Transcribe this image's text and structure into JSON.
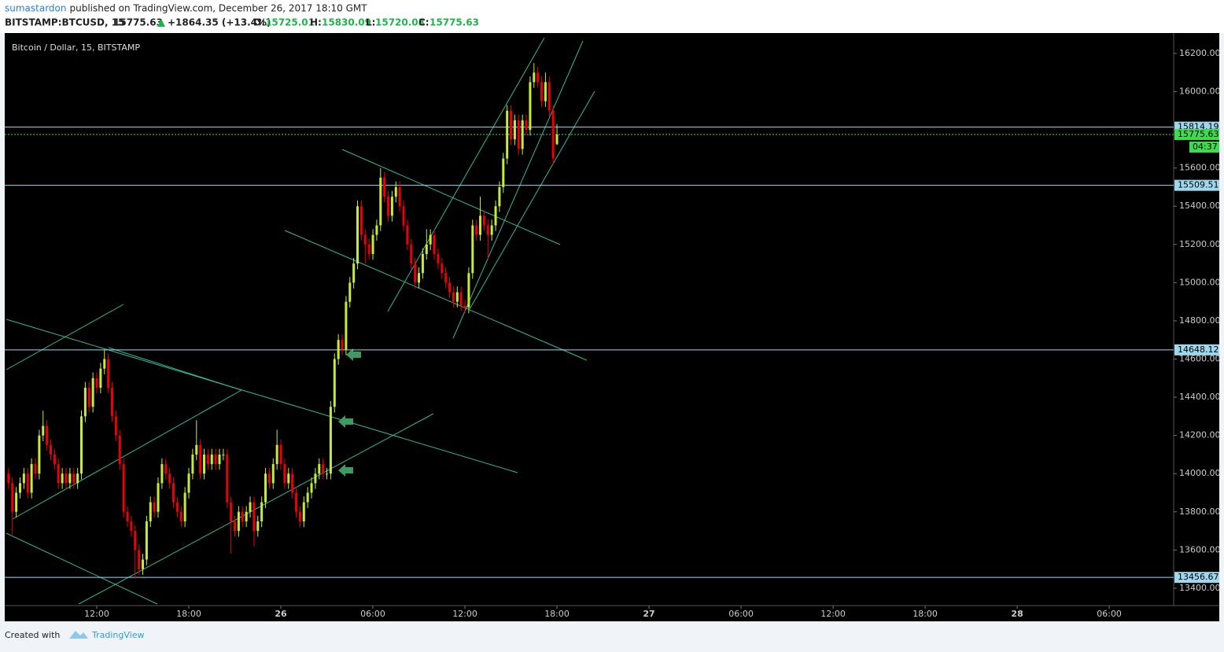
{
  "header": {
    "author": "sumastardon",
    "published": "published on TradingView.com, December 26, 2017 18:10 GMT",
    "symbol": "BITSTAMP:BTCUSD, 15",
    "last": "15775.63",
    "change": "+1864.35 (+13.4%)",
    "o_label": "O:",
    "o": "15725.01",
    "h_label": "H:",
    "h": "15830.09",
    "l_label": "L:",
    "l": "15720.03",
    "c_label": "C:",
    "c": "15775.63"
  },
  "footer": {
    "created": "Created with",
    "brand": "TradingView"
  },
  "chart_data": {
    "type": "candlestick",
    "title": "Bitcoin / Dollar, 15, BITSTAMP",
    "up_color": "#c6ec3a",
    "down_color": "#e8000b",
    "x": [
      6.25,
      6.5,
      6.75,
      7,
      7.25,
      7.5,
      7.75,
      8,
      8.25,
      8.5,
      8.75,
      9,
      9.25,
      9.5,
      9.75,
      10,
      10.25,
      10.5,
      10.75,
      11,
      11.25,
      11.5,
      11.75,
      12,
      12.25,
      12.5,
      12.75,
      13,
      13.25,
      13.5,
      13.75,
      14,
      14.25,
      14.5,
      14.75,
      15,
      15.25,
      15.5,
      15.75,
      16,
      16.25,
      16.5,
      16.75,
      17,
      17.25,
      17.5,
      17.75,
      18,
      18.25,
      18.5,
      18.75,
      19,
      19.25,
      19.5,
      19.75,
      20,
      20.25,
      20.5,
      20.75,
      21,
      21.25,
      21.5,
      21.75,
      22,
      22.25,
      22.5,
      22.75,
      23,
      23.25,
      23.5,
      23.75,
      24,
      24.25,
      24.5,
      24.75,
      25,
      25.25,
      25.5,
      25.75,
      26,
      26.25,
      26.5,
      26.75,
      27,
      27.25,
      27.5,
      27.75,
      28,
      28.25,
      28.5,
      28.75,
      29,
      29.25,
      29.5,
      29.75,
      30,
      30.25,
      30.5,
      30.75,
      31,
      31.25,
      31.5,
      31.75,
      32,
      32.25,
      32.5,
      32.75,
      33,
      33.25,
      33.5,
      33.75,
      34,
      34.25,
      34.5,
      34.75,
      35,
      35.25,
      35.5,
      35.75,
      36,
      36.25,
      36.5,
      36.75,
      37,
      37.25,
      37.5,
      37.75,
      38,
      38.25,
      38.5,
      38.75,
      39,
      39.25,
      39.5,
      39.75,
      40,
      40.25,
      40.5,
      40.75,
      41,
      41.25,
      41.5,
      41.75,
      42
    ],
    "open": [
      14000,
      13950,
      13800,
      13900,
      13950,
      14000,
      13900,
      14050,
      14000,
      14200,
      14250,
      14150,
      14100,
      14050,
      13950,
      14000,
      13950,
      14000,
      13950,
      14000,
      14300,
      14450,
      14350,
      14500,
      14450,
      14550,
      14600,
      14450,
      14300,
      14200,
      14050,
      13800,
      13750,
      13700,
      13600,
      13500,
      13550,
      13750,
      13850,
      13800,
      13950,
      14050,
      14000,
      13950,
      13850,
      13800,
      13750,
      13900,
      14000,
      14100,
      14150,
      14000,
      14100,
      14050,
      14100,
      14050,
      14100,
      14100,
      13850,
      13750,
      13700,
      13800,
      13750,
      13800,
      13850,
      13700,
      13750,
      13850,
      14000,
      13950,
      14050,
      14150,
      14050,
      13950,
      14000,
      13900,
      13800,
      13750,
      13850,
      13900,
      13950,
      14000,
      14050,
      14000,
      14000,
      14350,
      14600,
      14700,
      14650,
      14900,
      15000,
      15100,
      15400,
      15250,
      15200,
      15150,
      15250,
      15300,
      15550,
      15450,
      15350,
      15450,
      15500,
      15400,
      15300,
      15200,
      15100,
      15000,
      15050,
      15150,
      15200,
      15250,
      15150,
      15100,
      15050,
      15000,
      14950,
      14900,
      14950,
      14880,
      14870,
      15050,
      15300,
      15250,
      15350,
      15300,
      15250,
      15300,
      15400,
      15500,
      15650,
      15900,
      15750,
      15850,
      15700,
      15850,
      15800,
      16050,
      16100,
      16050,
      15950,
      16050,
      15900,
      15725.01
    ],
    "high": [
      14030,
      13980,
      13930,
      13980,
      14030,
      14030,
      14080,
      14080,
      14230,
      14330,
      14280,
      14180,
      14130,
      14080,
      14030,
      14030,
      14030,
      14030,
      14030,
      14330,
      14480,
      14480,
      14530,
      14530,
      14580,
      14650,
      14630,
      14480,
      14330,
      14230,
      14080,
      13830,
      13780,
      13730,
      13630,
      13580,
      13780,
      13880,
      13880,
      13980,
      14080,
      14080,
      14030,
      13980,
      13880,
      13830,
      13930,
      14030,
      14130,
      14280,
      14180,
      14130,
      14130,
      14130,
      14130,
      14130,
      14130,
      14130,
      13880,
      13780,
      13830,
      13830,
      13830,
      13880,
      13880,
      13780,
      13880,
      14030,
      14030,
      14080,
      14230,
      14180,
      14080,
      14030,
      14030,
      13930,
      13830,
      13880,
      13930,
      13980,
      14030,
      14080,
      14080,
      14030,
      14380,
      14630,
      14730,
      14730,
      14930,
      15030,
      15130,
      15430,
      15430,
      15280,
      15230,
      15280,
      15330,
      15600,
      15580,
      15480,
      15480,
      15530,
      15530,
      15430,
      15330,
      15230,
      15130,
      15080,
      15180,
      15280,
      15280,
      15280,
      15180,
      15130,
      15080,
      15030,
      14980,
      14980,
      14980,
      14910,
      15080,
      15330,
      15330,
      15450,
      15380,
      15330,
      15330,
      15430,
      15530,
      15680,
      15930,
      15930,
      15880,
      15880,
      15880,
      15880,
      16080,
      16150,
      16130,
      16080,
      16100,
      16080,
      15930,
      15830.09
    ],
    "low": [
      13920,
      13680,
      13770,
      13870,
      13920,
      13870,
      13870,
      13970,
      13970,
      14170,
      14120,
      14070,
      14020,
      13920,
      13920,
      13920,
      13920,
      13920,
      13920,
      13970,
      14270,
      14320,
      14320,
      14420,
      14420,
      14520,
      14420,
      14270,
      14170,
      14020,
      13770,
      13720,
      13670,
      13450,
      13470,
      13470,
      13520,
      13720,
      13770,
      13770,
      13920,
      13970,
      13920,
      13820,
      13770,
      13720,
      13720,
      13870,
      13970,
      14070,
      13970,
      13970,
      14020,
      14020,
      14020,
      14020,
      14070,
      13820,
      13580,
      13670,
      13670,
      13720,
      13720,
      13770,
      13620,
      13670,
      13720,
      13820,
      13920,
      13920,
      14020,
      14020,
      13920,
      13920,
      13870,
      13770,
      13720,
      13720,
      13820,
      13870,
      13920,
      13970,
      13970,
      13970,
      13970,
      14320,
      14570,
      14620,
      14620,
      14870,
      14970,
      15070,
      15220,
      15100,
      15120,
      15120,
      15220,
      15270,
      15420,
      15320,
      15320,
      15420,
      15370,
      15270,
      15170,
      15070,
      14970,
      14970,
      15020,
      15120,
      15170,
      15120,
      15070,
      15020,
      14970,
      14920,
      14870,
      14870,
      14850,
      14840,
      14840,
      15020,
      15220,
      15220,
      15270,
      15120,
      15220,
      15270,
      15370,
      15470,
      15620,
      15720,
      15720,
      15670,
      15670,
      15770,
      15770,
      16020,
      16020,
      15920,
      15920,
      15870,
      15620,
      15720.03
    ],
    "close": [
      13950,
      13800,
      13900,
      13950,
      14000,
      13900,
      14050,
      14000,
      14200,
      14250,
      14150,
      14100,
      14050,
      13950,
      14000,
      13950,
      14000,
      13950,
      14000,
      14300,
      14450,
      14350,
      14500,
      14450,
      14550,
      14600,
      14450,
      14300,
      14200,
      14050,
      13800,
      13750,
      13700,
      13600,
      13500,
      13550,
      13750,
      13850,
      13800,
      13950,
      14050,
      14000,
      13950,
      13850,
      13800,
      13750,
      13900,
      14000,
      14100,
      14150,
      14000,
      14100,
      14050,
      14100,
      14050,
      14100,
      14100,
      13850,
      13750,
      13700,
      13800,
      13750,
      13800,
      13850,
      13700,
      13750,
      13850,
      14000,
      13950,
      14050,
      14150,
      14050,
      13950,
      14000,
      13900,
      13800,
      13750,
      13850,
      13900,
      13950,
      14000,
      14050,
      14000,
      14000,
      14350,
      14600,
      14700,
      14650,
      14900,
      15000,
      15100,
      15400,
      15250,
      15200,
      15150,
      15250,
      15300,
      15550,
      15450,
      15350,
      15450,
      15500,
      15400,
      15300,
      15200,
      15100,
      15000,
      15050,
      15150,
      15200,
      15250,
      15150,
      15100,
      15050,
      15000,
      14950,
      14900,
      14950,
      14880,
      14870,
      15050,
      15300,
      15250,
      15350,
      15300,
      15250,
      15300,
      15400,
      15500,
      15650,
      15900,
      15750,
      15850,
      15700,
      15850,
      15800,
      16050,
      16100,
      16050,
      15950,
      16050,
      15900,
      15650,
      15775.63
    ],
    "xlim": [
      6,
      82.2
    ],
    "xticks": [
      {
        "value": 12,
        "label": "12:00"
      },
      {
        "value": 18,
        "label": "18:00"
      },
      {
        "value": 24,
        "label": "26"
      },
      {
        "value": 30,
        "label": "06:00"
      },
      {
        "value": 36,
        "label": "12:00"
      },
      {
        "value": 42,
        "label": "18:00"
      },
      {
        "value": 48,
        "label": "27"
      },
      {
        "value": 54,
        "label": "06:00"
      },
      {
        "value": 60,
        "label": "12:00"
      },
      {
        "value": 66,
        "label": "18:00"
      },
      {
        "value": 72,
        "label": "28"
      },
      {
        "value": 78,
        "label": "06:00"
      }
    ],
    "ylim": [
      13309,
      16307
    ],
    "yticks": [
      {
        "value": 13400,
        "label": "13400.00"
      },
      {
        "value": 13600,
        "label": "13600.00"
      },
      {
        "value": 13800,
        "label": "13800.00"
      },
      {
        "value": 14000,
        "label": "14000.00"
      },
      {
        "value": 14200,
        "label": "14200.00"
      },
      {
        "value": 14400,
        "label": "14400.00"
      },
      {
        "value": 14600,
        "label": "14600.00"
      },
      {
        "value": 14800,
        "label": "14800.00"
      },
      {
        "value": 15000,
        "label": "15000.00"
      },
      {
        "value": 15200,
        "label": "15200.00"
      },
      {
        "value": 15400,
        "label": "15400.00"
      },
      {
        "value": 15600,
        "label": "15600.00"
      },
      {
        "value": 15800,
        "label": "15800.00"
      },
      {
        "value": 16000,
        "label": "16000.00"
      },
      {
        "value": 16200,
        "label": "16200.00"
      }
    ],
    "levels": [
      15814.19,
      15509.51,
      14648.12,
      13456.67
    ],
    "level_color": "#9fd8ee",
    "last_price": 15775.63,
    "last_color": "#3ddc4e",
    "countdown": "04:37"
  }
}
